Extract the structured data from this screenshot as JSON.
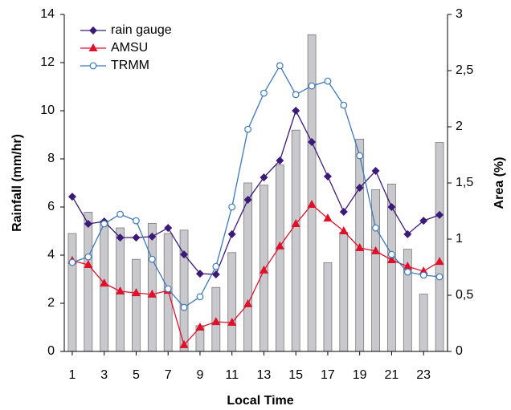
{
  "chart_data": {
    "type": "bar-line",
    "x_label": "Local Time",
    "y_label": "Rainfall (mm/hr)",
    "y2_label": "Area (%)",
    "x": [
      1,
      2,
      3,
      4,
      5,
      6,
      7,
      8,
      9,
      10,
      11,
      12,
      13,
      14,
      15,
      16,
      17,
      18,
      19,
      20,
      21,
      22,
      23,
      24
    ],
    "xlim": [
      0.5,
      24.5
    ],
    "xticks": [
      1,
      3,
      5,
      7,
      9,
      11,
      13,
      15,
      17,
      19,
      21,
      23
    ],
    "ylim": [
      0,
      14
    ],
    "yticks": [
      0,
      2,
      4,
      6,
      8,
      10,
      12,
      14
    ],
    "y2lim": [
      0,
      3
    ],
    "y2ticks": [
      0,
      {
        "value": 0.5,
        "label": "0,5"
      },
      1,
      {
        "value": 1.5,
        "label": "1,5"
      },
      2,
      {
        "value": 2.5,
        "label": "2,5"
      },
      3
    ],
    "legend": "upper-left",
    "bars": {
      "color": "#c9c9cd",
      "axis": "y2",
      "values": [
        1.05,
        1.24,
        1.16,
        1.1,
        0.82,
        1.14,
        1.05,
        1.08,
        0.23,
        0.57,
        0.88,
        1.5,
        1.48,
        1.66,
        1.97,
        2.82,
        0.79,
        1.06,
        1.89,
        1.44,
        1.49,
        0.91,
        0.51,
        1.86
      ]
    },
    "series": [
      {
        "name": "rain gauge",
        "color": "#3b1a78",
        "marker": "diamond",
        "values": [
          6.43,
          5.3,
          5.4,
          4.73,
          4.73,
          4.77,
          5.13,
          4.03,
          3.23,
          3.2,
          4.87,
          6.3,
          7.23,
          7.93,
          10.0,
          8.7,
          7.27,
          5.8,
          6.8,
          7.5,
          6.0,
          4.87,
          5.43,
          5.67
        ]
      },
      {
        "name": "AMSU",
        "color": "#e0102a",
        "marker": "triangle",
        "values": [
          3.77,
          3.6,
          2.83,
          2.5,
          2.43,
          2.37,
          2.53,
          0.27,
          1.0,
          1.23,
          1.2,
          1.97,
          3.37,
          4.37,
          5.3,
          6.1,
          5.53,
          5.0,
          4.3,
          4.17,
          3.8,
          3.53,
          3.33,
          3.73
        ]
      },
      {
        "name": "TRMM",
        "color": "#3c78b8",
        "marker": "circle",
        "values": [
          3.7,
          3.93,
          5.3,
          5.7,
          5.43,
          3.83,
          2.6,
          1.83,
          2.27,
          3.53,
          6.0,
          9.23,
          10.73,
          11.87,
          10.67,
          11.03,
          11.23,
          10.23,
          8.13,
          5.13,
          4.03,
          3.3,
          3.17,
          3.1
        ]
      }
    ]
  }
}
